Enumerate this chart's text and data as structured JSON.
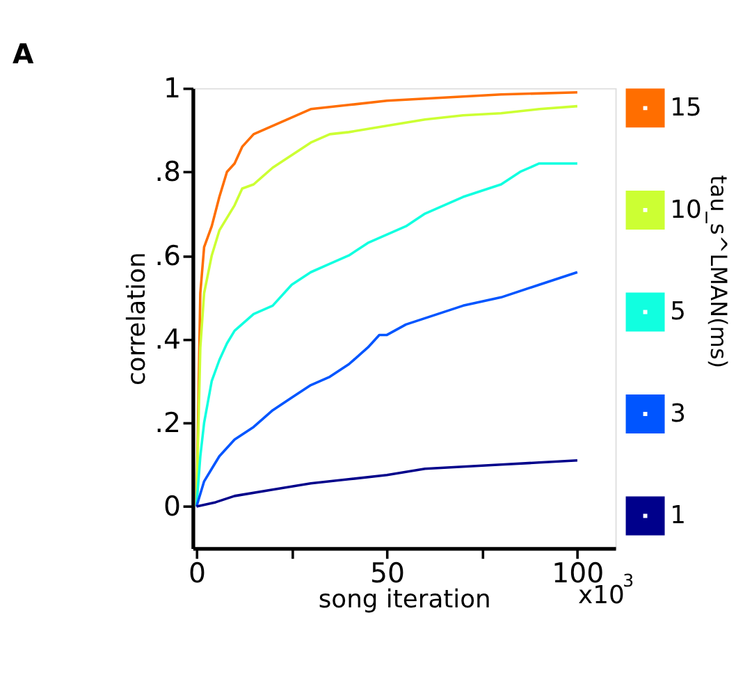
{
  "chart_data": {
    "type": "line",
    "title": "A",
    "xlabel": "song iteration",
    "ylabel": "correlation",
    "legend_title": "tau_s^LMAN(ms)",
    "legend": "right",
    "grid": false,
    "marker": "none",
    "line_style": "solid",
    "xlim": [
      -1,
      110
    ],
    "xticks": [
      0,
      {
        "value": 25,
        "label": null
      },
      50,
      {
        "value": 75,
        "label": null
      },
      100
    ],
    "ylim": [
      -0.1,
      1
    ],
    "yticks": [
      {
        "value": 0,
        "label": "0"
      },
      {
        "value": 0.2,
        "label": ".2"
      },
      {
        "value": 0.4,
        "label": ".4"
      },
      {
        "value": 0.6,
        "label": ".6"
      },
      {
        "value": 0.8,
        "label": ".8"
      },
      {
        "value": 1,
        "label": "1"
      }
    ],
    "annotations": [
      "x10$^{3}$"
    ],
    "series": [
      {
        "name": "15",
        "color": "#ff6e00",
        "x": [
          0,
          1,
          2,
          4,
          6,
          8,
          10,
          12,
          15,
          20,
          25,
          30,
          40,
          50,
          60,
          70,
          80,
          100
        ],
        "values": [
          0,
          0.51,
          0.62,
          0.67,
          0.74,
          0.8,
          0.82,
          0.86,
          0.89,
          0.91,
          0.93,
          0.95,
          0.96,
          0.97,
          0.975,
          0.98,
          0.985,
          0.99
        ]
      },
      {
        "name": "10",
        "color": "#ccff33",
        "x": [
          0,
          1,
          2,
          4,
          6,
          8,
          10,
          12,
          15,
          20,
          25,
          30,
          35,
          40,
          50,
          60,
          70,
          80,
          90,
          100
        ],
        "values": [
          0,
          0.38,
          0.51,
          0.6,
          0.66,
          0.69,
          0.72,
          0.76,
          0.77,
          0.81,
          0.84,
          0.87,
          0.89,
          0.895,
          0.91,
          0.925,
          0.935,
          0.94,
          0.95,
          0.957
        ]
      },
      {
        "name": "5",
        "color": "#11ffe0",
        "x": [
          0,
          1,
          2,
          4,
          6,
          8,
          10,
          15,
          20,
          25,
          30,
          35,
          40,
          45,
          50,
          55,
          60,
          70,
          80,
          85,
          90,
          100
        ],
        "values": [
          0,
          0.12,
          0.2,
          0.3,
          0.35,
          0.39,
          0.42,
          0.46,
          0.48,
          0.53,
          0.56,
          0.58,
          0.6,
          0.63,
          0.65,
          0.67,
          0.7,
          0.74,
          0.77,
          0.8,
          0.82,
          0.82
        ]
      },
      {
        "name": "3",
        "color": "#0055ff",
        "x": [
          0,
          2,
          4,
          6,
          8,
          10,
          15,
          20,
          25,
          30,
          35,
          40,
          45,
          48,
          50,
          55,
          60,
          70,
          80,
          90,
          100
        ],
        "values": [
          0,
          0.06,
          0.09,
          0.12,
          0.14,
          0.16,
          0.19,
          0.23,
          0.26,
          0.29,
          0.31,
          0.34,
          0.38,
          0.41,
          0.41,
          0.435,
          0.45,
          0.48,
          0.5,
          0.53,
          0.56
        ]
      },
      {
        "name": "1",
        "color": "#00008b",
        "x": [
          0,
          5,
          10,
          20,
          30,
          40,
          50,
          60,
          70,
          80,
          90,
          100
        ],
        "values": [
          0,
          0.01,
          0.025,
          0.04,
          0.055,
          0.065,
          0.075,
          0.09,
          0.095,
          0.1,
          0.105,
          0.11
        ]
      }
    ]
  }
}
